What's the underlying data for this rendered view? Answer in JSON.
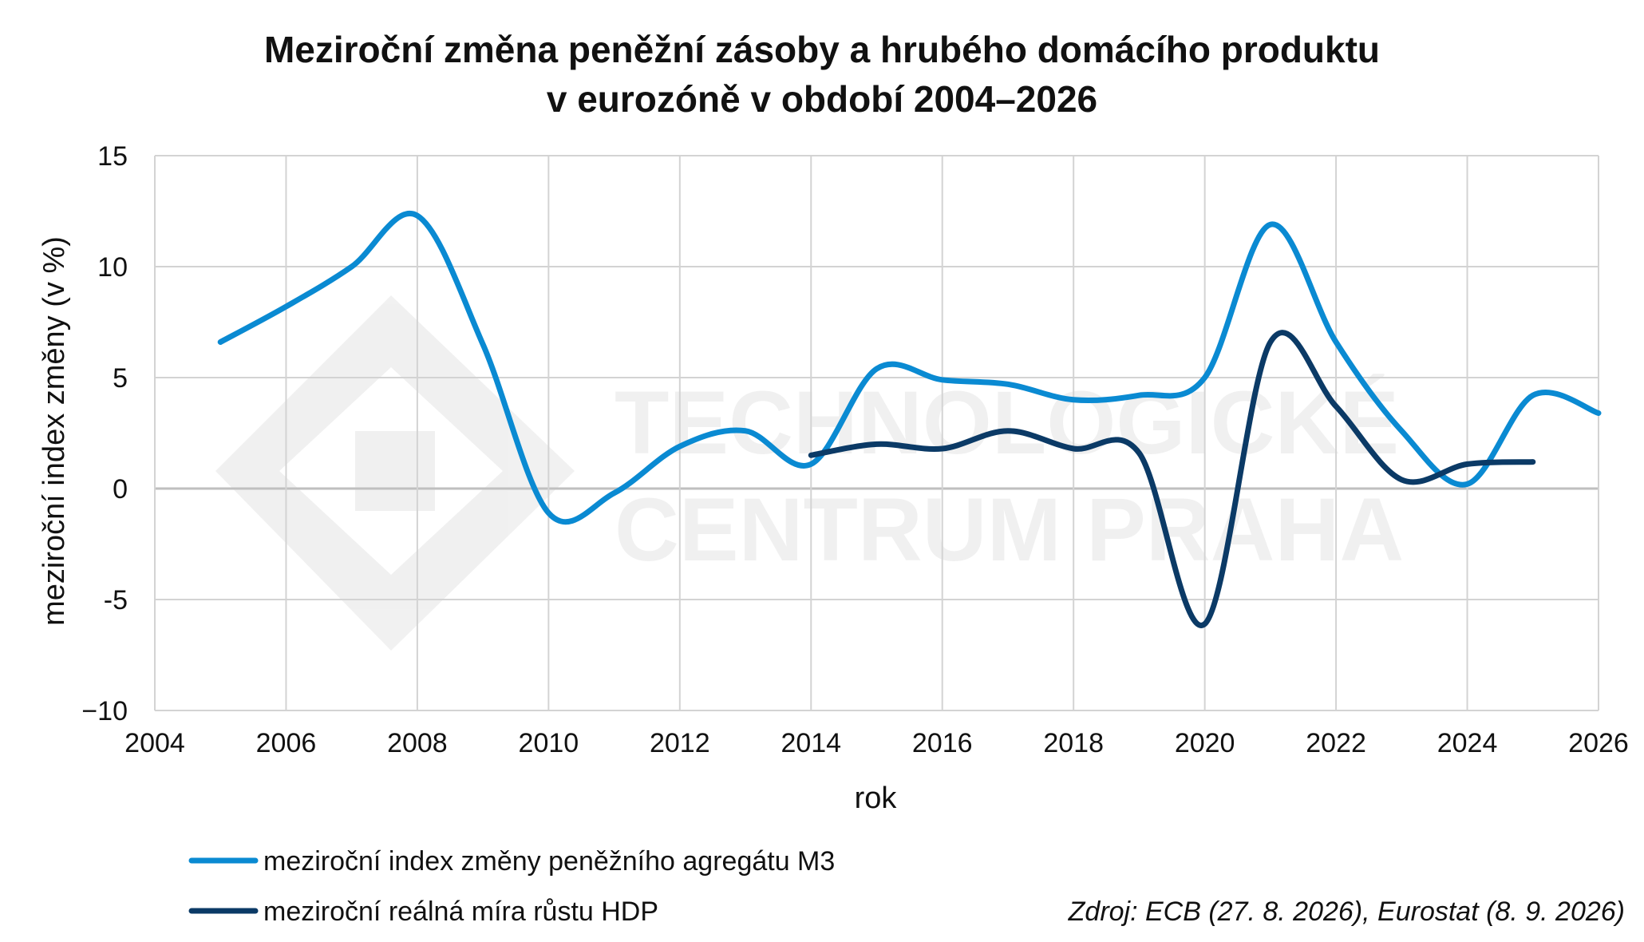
{
  "chart_data": {
    "type": "line",
    "title_lines": [
      "Meziroční změna peněžní zásoby a hrubého domácího produktu",
      "v eurozóně v období 2004–2026"
    ],
    "xlabel": "rok",
    "ylabel": "meziroční index změny (v %)",
    "xlim": [
      2004,
      2026
    ],
    "ylim": [
      -10,
      15
    ],
    "x_ticks": [
      2004,
      2006,
      2008,
      2010,
      2012,
      2014,
      2016,
      2018,
      2020,
      2022,
      2024,
      2026
    ],
    "y_ticks": [
      15,
      10,
      5,
      0,
      -5,
      -10
    ],
    "y_tick_labels": [
      "15",
      "10",
      "5",
      "0",
      "-5",
      "−10"
    ],
    "grid": true,
    "legend_position": "bottom-left",
    "series": [
      {
        "name": "meziroční index změny peněžního agregátu M3",
        "color": "#0a8ad2",
        "points": [
          [
            2005,
            6.6
          ],
          [
            2006,
            8.2
          ],
          [
            2007,
            10.0
          ],
          [
            2008,
            12.3
          ],
          [
            2009,
            6.5
          ],
          [
            2010,
            -1.1
          ],
          [
            2011,
            -0.2
          ],
          [
            2012,
            1.9
          ],
          [
            2013,
            2.6
          ],
          [
            2014,
            1.1
          ],
          [
            2015,
            5.4
          ],
          [
            2016,
            4.9
          ],
          [
            2017,
            4.7
          ],
          [
            2018,
            4.0
          ],
          [
            2019,
            4.2
          ],
          [
            2020,
            5.0
          ],
          [
            2021,
            11.9
          ],
          [
            2022,
            6.6
          ],
          [
            2023,
            2.6
          ],
          [
            2024,
            0.2
          ],
          [
            2025,
            4.2
          ],
          [
            2026,
            3.4
          ]
        ]
      },
      {
        "name": "meziroční reálná míra růstu HDP",
        "color": "#0b3a66",
        "points": [
          [
            2014,
            1.5
          ],
          [
            2015,
            2.0
          ],
          [
            2016,
            1.8
          ],
          [
            2017,
            2.6
          ],
          [
            2018,
            1.8
          ],
          [
            2019,
            1.6
          ],
          [
            2020,
            -6.1
          ],
          [
            2021,
            6.6
          ],
          [
            2022,
            3.7
          ],
          [
            2023,
            0.4
          ],
          [
            2024,
            1.1
          ],
          [
            2025,
            1.2
          ]
        ]
      }
    ]
  },
  "source": "Zdroj: ECB (27. 8. 2026), Eurostat (8. 9. 2026)",
  "watermark": {
    "lines": [
      "TECHNOLOGICKÉ",
      "CENTRUM PRAHA"
    ],
    "color": "#000000"
  },
  "colors": {
    "grid": "#d3d3d3",
    "zero_line": "#bfbfbf",
    "text": "#111111"
  }
}
